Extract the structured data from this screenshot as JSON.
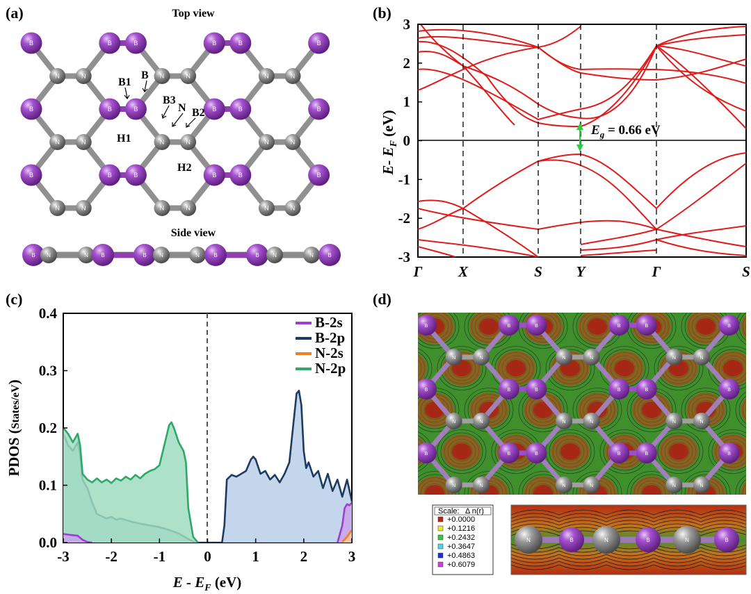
{
  "panel_a": {
    "label": "(a)",
    "top_view_title": "Top view",
    "side_view_title": "Side view",
    "atom_labels": {
      "boron": "B",
      "nitrogen": "N"
    },
    "annotations": [
      "B1",
      "B",
      "B3",
      "N",
      "B2",
      "H1",
      "H2"
    ],
    "colors": {
      "boron": "#8e3fb0",
      "nitrogen": "#7d7d7d",
      "bond_bb": "#8e3fb0",
      "bond_bn": "#909090"
    }
  },
  "panel_b": {
    "label": "(b)",
    "ylabel_main": "E- E",
    "ylabel_sub": "F",
    "ylabel_unit": " (eV)",
    "gap_label_main": "E",
    "gap_label_sub": "g",
    "gap_label_value": " = 0.66 eV",
    "k_labels": [
      "Γ",
      "X",
      "S",
      "Y",
      "Γ",
      "S"
    ],
    "y_ticks": [
      "3",
      "2",
      "1",
      "0",
      "-1",
      "-2",
      "-3"
    ],
    "colors": {
      "band": "#e01b1b",
      "gap_arrow": "#2ecc40"
    }
  },
  "chart_data": {
    "type": "area",
    "title": "",
    "xlabel": "E - E_F (eV)",
    "ylabel": "PDOS (States/eV)",
    "xlim": [
      -3,
      3
    ],
    "ylim": [
      0,
      0.4
    ],
    "x_ticks": [
      "-3",
      "-2",
      "-1",
      "0",
      "1",
      "2",
      "3"
    ],
    "y_ticks": [
      "0.0",
      "0.1",
      "0.2",
      "0.3",
      "0.4"
    ],
    "legend_position": "top-right",
    "series": [
      {
        "name": "B-2s",
        "color": "#9b3fd1",
        "x": [
          -3,
          -2.9,
          -2.8,
          -2.7,
          -2.6,
          -2.5,
          -2.4,
          2.7,
          2.8,
          2.85,
          2.9,
          2.95,
          3.0
        ],
        "values": [
          0.015,
          0.014,
          0.013,
          0.012,
          0.005,
          0.001,
          0.0,
          0.0,
          0.03,
          0.06,
          0.067,
          0.065,
          0.07
        ]
      },
      {
        "name": "B-2p",
        "color": "#1f3a5f",
        "x": [
          -3.0,
          -2.9,
          -2.8,
          -2.7,
          -2.65,
          -2.6,
          -2.5,
          -2.4,
          -2.3,
          -2.2,
          -2.1,
          -2.0,
          -1.9,
          -1.8,
          -1.6,
          -1.4,
          -1.2,
          -1.0,
          -0.8,
          -0.6,
          -0.4,
          -0.25,
          -0.2,
          0.3,
          0.35,
          0.4,
          0.5,
          0.6,
          0.7,
          0.8,
          0.9,
          0.95,
          1.0,
          1.1,
          1.2,
          1.3,
          1.4,
          1.5,
          1.6,
          1.7,
          1.8,
          1.85,
          1.9,
          1.95,
          2.0,
          2.05,
          2.1,
          2.2,
          2.3,
          2.4,
          2.5,
          2.6,
          2.7,
          2.8,
          2.9,
          3.0
        ],
        "values": [
          0.19,
          0.17,
          0.16,
          0.175,
          0.155,
          0.11,
          0.095,
          0.07,
          0.05,
          0.046,
          0.042,
          0.045,
          0.04,
          0.042,
          0.037,
          0.033,
          0.03,
          0.027,
          0.022,
          0.016,
          0.006,
          0.0,
          0.0,
          0.0,
          0.03,
          0.11,
          0.118,
          0.115,
          0.12,
          0.125,
          0.145,
          0.15,
          0.145,
          0.12,
          0.125,
          0.11,
          0.118,
          0.105,
          0.12,
          0.14,
          0.22,
          0.26,
          0.265,
          0.24,
          0.16,
          0.13,
          0.14,
          0.115,
          0.125,
          0.095,
          0.12,
          0.09,
          0.11,
          0.08,
          0.11,
          0.072
        ]
      },
      {
        "name": "N-2s",
        "color": "#f07f1c",
        "x": [
          -3.0,
          -2.0,
          -1.0,
          0.0,
          1.0,
          2.0,
          2.8,
          2.9,
          3.0
        ],
        "values": [
          0.001,
          0.001,
          0.001,
          0.0,
          0.0,
          0.001,
          0.001,
          0.01,
          0.022
        ]
      },
      {
        "name": "N-2p",
        "color": "#2ea86a",
        "x": [
          -3.0,
          -2.9,
          -2.8,
          -2.7,
          -2.65,
          -2.6,
          -2.5,
          -2.4,
          -2.3,
          -2.2,
          -2.1,
          -2.0,
          -1.9,
          -1.8,
          -1.7,
          -1.6,
          -1.5,
          -1.4,
          -1.3,
          -1.2,
          -1.1,
          -1.0,
          -0.9,
          -0.8,
          -0.75,
          -0.7,
          -0.6,
          -0.5,
          -0.45,
          -0.4,
          -0.3,
          -0.2
        ],
        "values": [
          0.2,
          0.19,
          0.175,
          0.19,
          0.17,
          0.12,
          0.11,
          0.105,
          0.112,
          0.105,
          0.11,
          0.104,
          0.112,
          0.108,
          0.115,
          0.11,
          0.118,
          0.112,
          0.12,
          0.125,
          0.128,
          0.135,
          0.17,
          0.205,
          0.21,
          0.2,
          0.175,
          0.16,
          0.14,
          0.06,
          0.01,
          0.0
        ]
      }
    ]
  },
  "panel_c": {
    "label": "(c)",
    "xlabel_main": "E - E",
    "xlabel_sub": "F",
    "xlabel_unit": " (eV)",
    "ylabel_main": "PDOS (",
    "ylabel_states": "States/eV",
    "ylabel_close": ")"
  },
  "panel_d": {
    "label": "(d)",
    "scale_header": "Scale:",
    "scale_symbol": "Δ n(r)",
    "scale_values": [
      "+0.0000",
      "+0.1216",
      "+0.2432",
      "+0.3647",
      "+0.4863",
      "+0.6079"
    ],
    "scale_colors": [
      "#b3261e",
      "#e8e83a",
      "#3fbf3f",
      "#4fd6e0",
      "#1f2fd0",
      "#d43fd6"
    ],
    "map_colors": {
      "high": "#c03a16",
      "mid": "#d9c12b",
      "low": "#3e8f2a"
    }
  }
}
